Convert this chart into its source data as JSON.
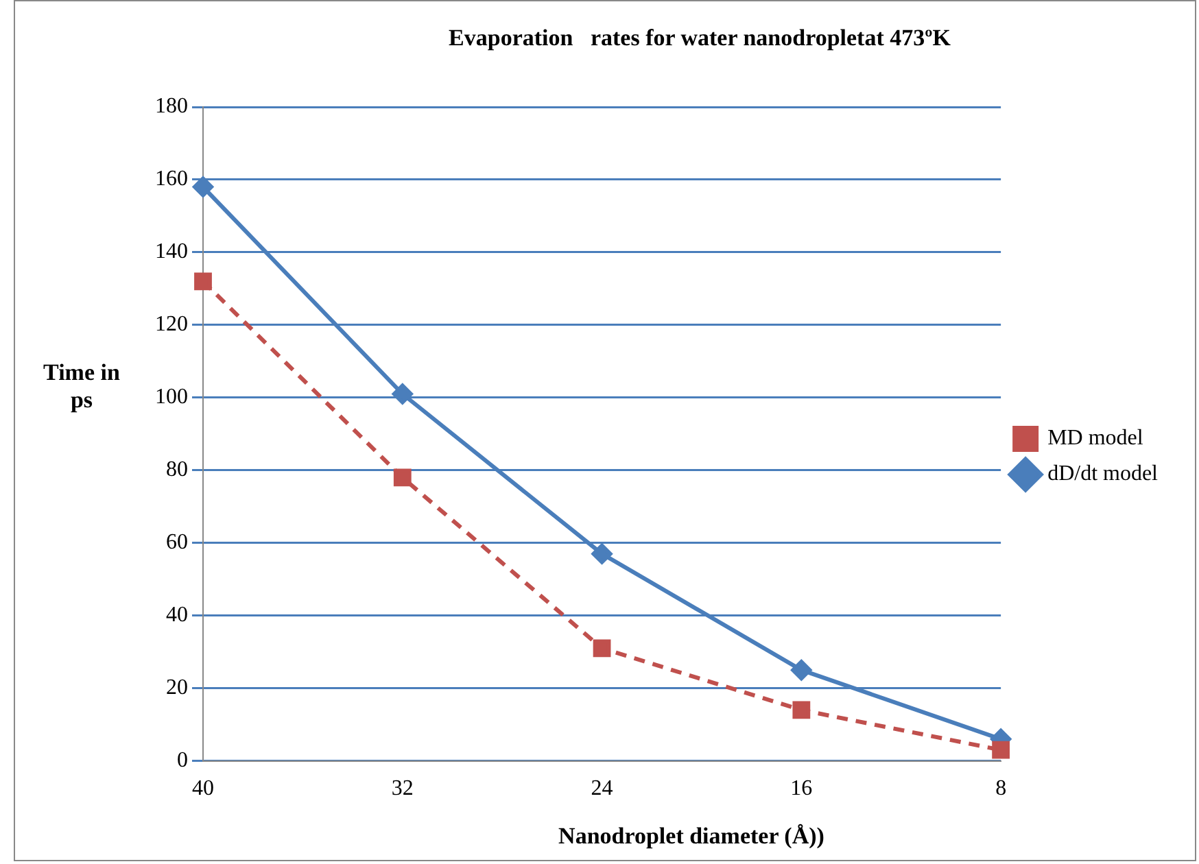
{
  "chart_data": {
    "type": "line",
    "title": "Evaporation   rates for water nanodropletat 473ºK",
    "xlabel": "Nanodroplet diameter (Å))",
    "ylabel": "Time in ps",
    "categories": [
      "40",
      "32",
      "24",
      "16",
      "8"
    ],
    "series": [
      {
        "name": "MD model",
        "color": "#c0504d",
        "values": [
          132,
          78,
          31,
          14,
          3
        ],
        "marker": "square",
        "line_style": "dashed"
      },
      {
        "name": "dD/dt model",
        "color": "#4a7ebb",
        "values": [
          158,
          101,
          57,
          25,
          6
        ],
        "marker": "diamond",
        "line_style": "solid"
      }
    ],
    "ylim": [
      0,
      180
    ],
    "yticks": [
      0,
      20,
      40,
      60,
      80,
      100,
      120,
      140,
      160,
      180
    ],
    "grid": "y",
    "legend": "right"
  }
}
